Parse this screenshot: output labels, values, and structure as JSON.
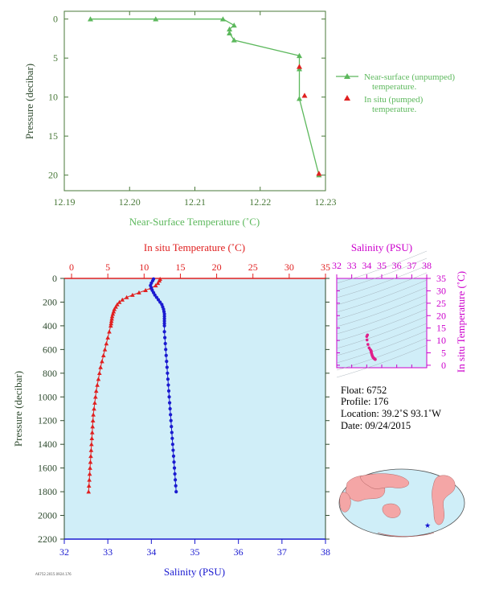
{
  "chart_data": [
    {
      "type": "line",
      "xlabel": "Near-Surface Temperature (˚C)",
      "ylabel": "Pressure (decibar)",
      "xlim": [
        12.19,
        12.23
      ],
      "ylim": [
        22,
        -1
      ],
      "x_ticks": [
        "12.19",
        "12.20",
        "12.21",
        "12.22",
        "12.23"
      ],
      "y_ticks": [
        "0",
        "5",
        "10",
        "15",
        "20"
      ],
      "colors": {
        "axis": "#4a7a3a",
        "near_surface": "#5cb85c",
        "in_situ": "#e02020"
      },
      "series": [
        {
          "name": "Near-surface (unpumped) temperature.",
          "marker": "triangle",
          "points": [
            {
              "x": 12.194,
              "y": 0.0
            },
            {
              "x": 12.204,
              "y": 0.0
            },
            {
              "x": 12.2143,
              "y": 0.0
            },
            {
              "x": 12.216,
              "y": 0.8
            },
            {
              "x": 12.2153,
              "y": 1.3
            },
            {
              "x": 12.2153,
              "y": 1.8
            },
            {
              "x": 12.216,
              "y": 2.7
            },
            {
              "x": 12.226,
              "y": 4.7
            },
            {
              "x": 12.226,
              "y": 6.4
            },
            {
              "x": 12.226,
              "y": 10.2
            },
            {
              "x": 12.229,
              "y": 20.0
            }
          ]
        },
        {
          "name": "In situ (pumped) temperature.",
          "marker": "triangle",
          "points": [
            {
              "x": 12.226,
              "y": 6.1
            },
            {
              "x": 12.2268,
              "y": 9.8
            },
            {
              "x": 12.229,
              "y": 19.8
            }
          ]
        }
      ]
    },
    {
      "type": "line",
      "title_top": "In situ Temperature (˚C)",
      "xlabel": "Salinity (PSU)",
      "ylabel": "Pressure (decibar)",
      "temp_lim": [
        -1,
        35
      ],
      "sal_lim": [
        32,
        38
      ],
      "ylim": [
        2200,
        0
      ],
      "temp_ticks": [
        "0",
        "5",
        "10",
        "15",
        "20",
        "25",
        "30",
        "35"
      ],
      "sal_ticks": [
        "32",
        "33",
        "34",
        "35",
        "36",
        "37",
        "38"
      ],
      "y_ticks": [
        "0",
        "200",
        "400",
        "600",
        "800",
        "1000",
        "1200",
        "1400",
        "1600",
        "1800",
        "2000",
        "2200"
      ],
      "colors": {
        "background": "#d0eef8",
        "temperature": "#e02020",
        "salinity": "#1a1ad0",
        "axis_dark": "#2e4a2e"
      },
      "series": [
        {
          "name": "In situ Temperature (˚C)",
          "marker": "triangle",
          "pressure": [
            5,
            20,
            40,
            60,
            80,
            100,
            120,
            140,
            160,
            180,
            200,
            220,
            240,
            260,
            280,
            300,
            320,
            340,
            360,
            380,
            400,
            450,
            500,
            550,
            600,
            650,
            700,
            750,
            800,
            850,
            900,
            950,
            1000,
            1050,
            1100,
            1150,
            1200,
            1250,
            1300,
            1350,
            1400,
            1450,
            1500,
            1550,
            1600,
            1650,
            1700,
            1750,
            1800
          ],
          "values": [
            12.2,
            12.1,
            11.9,
            11.6,
            11.0,
            10.2,
            9.3,
            8.4,
            7.6,
            7.0,
            6.6,
            6.3,
            6.1,
            5.9,
            5.8,
            5.7,
            5.6,
            5.55,
            5.5,
            5.45,
            5.4,
            5.2,
            5.0,
            4.8,
            4.6,
            4.4,
            4.2,
            4.0,
            3.85,
            3.7,
            3.55,
            3.4,
            3.3,
            3.2,
            3.1,
            3.0,
            2.95,
            2.9,
            2.85,
            2.8,
            2.75,
            2.7,
            2.65,
            2.6,
            2.55,
            2.5,
            2.45,
            2.4,
            2.35
          ]
        },
        {
          "name": "Salinity (PSU)",
          "marker": "circle",
          "pressure": [
            5,
            20,
            40,
            60,
            80,
            100,
            120,
            140,
            160,
            180,
            200,
            220,
            240,
            260,
            280,
            300,
            320,
            340,
            360,
            380,
            400,
            450,
            500,
            550,
            600,
            650,
            700,
            750,
            800,
            850,
            900,
            950,
            1000,
            1050,
            1100,
            1150,
            1200,
            1250,
            1300,
            1350,
            1400,
            1450,
            1500,
            1550,
            1600,
            1650,
            1700,
            1750,
            1800
          ],
          "values": [
            34.05,
            34.03,
            34.0,
            33.98,
            34.0,
            34.02,
            34.05,
            34.08,
            34.12,
            34.16,
            34.2,
            34.24,
            34.26,
            34.28,
            34.29,
            34.3,
            34.3,
            34.3,
            34.3,
            34.3,
            34.3,
            34.3,
            34.31,
            34.32,
            34.33,
            34.34,
            34.35,
            34.36,
            34.37,
            34.38,
            34.39,
            34.4,
            34.41,
            34.42,
            34.43,
            34.44,
            34.45,
            34.46,
            34.47,
            34.48,
            34.49,
            34.5,
            34.51,
            34.52,
            34.53,
            34.54,
            34.55,
            34.56,
            34.57
          ]
        }
      ]
    },
    {
      "type": "scatter",
      "xlabel": "Salinity (PSU)",
      "ylabel": "In situ Temperature (˚C)",
      "xlim": [
        32,
        38
      ],
      "ylim": [
        -1,
        35
      ],
      "x_ticks": [
        "32",
        "33",
        "34",
        "35",
        "36",
        "37",
        "38"
      ],
      "y_ticks": [
        "0",
        "5",
        "10",
        "15",
        "20",
        "25",
        "30",
        "35"
      ],
      "colors": {
        "axis": "#cc00cc",
        "points": "#e0208a",
        "background": "#d0eef8"
      },
      "points": [
        {
          "x": 34.05,
          "y": 12.2
        },
        {
          "x": 34.0,
          "y": 11.6
        },
        {
          "x": 34.02,
          "y": 10.2
        },
        {
          "x": 34.08,
          "y": 8.4
        },
        {
          "x": 34.16,
          "y": 7.0
        },
        {
          "x": 34.24,
          "y": 6.3
        },
        {
          "x": 34.28,
          "y": 5.9
        },
        {
          "x": 34.3,
          "y": 5.7
        },
        {
          "x": 34.3,
          "y": 5.5
        },
        {
          "x": 34.3,
          "y": 5.2
        },
        {
          "x": 34.32,
          "y": 4.8
        },
        {
          "x": 34.34,
          "y": 4.4
        },
        {
          "x": 34.36,
          "y": 4.0
        },
        {
          "x": 34.38,
          "y": 3.7
        },
        {
          "x": 34.4,
          "y": 3.4
        },
        {
          "x": 34.42,
          "y": 3.2
        },
        {
          "x": 34.44,
          "y": 3.0
        },
        {
          "x": 34.46,
          "y": 2.9
        },
        {
          "x": 34.48,
          "y": 2.8
        },
        {
          "x": 34.5,
          "y": 2.7
        },
        {
          "x": 34.52,
          "y": 2.6
        },
        {
          "x": 34.54,
          "y": 2.5
        },
        {
          "x": 34.56,
          "y": 2.4
        },
        {
          "x": 34.57,
          "y": 2.35
        }
      ]
    }
  ],
  "info": {
    "float": "Float:  6752",
    "profile": "Profile:  176",
    "location": "Location:  39.2˚S  93.1˚W",
    "date": "Date:  09/24/2015"
  },
  "map": {
    "ocean_color": "#cfeef8",
    "land_color": "#f4a6a6",
    "marker": "★",
    "marker_color": "#1010d0"
  },
  "footer_tag": "A6752.2015.0924.176"
}
